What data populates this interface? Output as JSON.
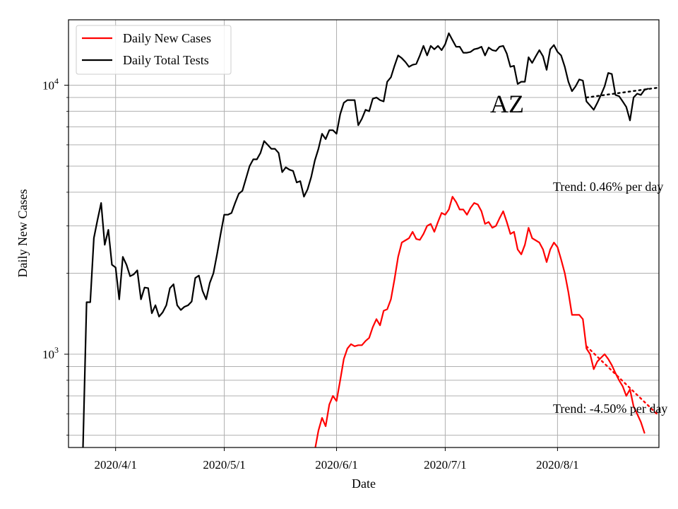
{
  "chart_data": {
    "type": "line",
    "xlabel": "Date",
    "ylabel": "Daily New Cases",
    "yscale": "log",
    "ylim": [
      450,
      17500
    ],
    "xlim": [
      "2020-03-19",
      "2020-08-29"
    ],
    "x_ticks": [
      {
        "date": "2020-04-01",
        "label": "2020/4/1"
      },
      {
        "date": "2020-05-01",
        "label": "2020/5/1"
      },
      {
        "date": "2020-06-01",
        "label": "2020/6/1"
      },
      {
        "date": "2020-07-01",
        "label": "2020/7/1"
      },
      {
        "date": "2020-08-01",
        "label": "2020/8/1"
      }
    ],
    "y_major_ticks": [
      {
        "value": 1000,
        "base": "10",
        "exp": "3"
      },
      {
        "value": 10000,
        "base": "10",
        "exp": "4"
      }
    ],
    "y_minor_ticks": [
      500,
      600,
      700,
      800,
      900,
      2000,
      3000,
      4000,
      5000,
      6000,
      7000,
      8000,
      9000
    ],
    "grid": true,
    "legend": {
      "placement": "top-left",
      "entries": [
        {
          "label": "Daily New Cases",
          "color": "#ff0000"
        },
        {
          "label": "Daily Total Tests",
          "color": "#000000"
        }
      ]
    },
    "series": [
      {
        "name": "Daily New Cases",
        "color": "#ff0000",
        "start_date": "2020-05-26",
        "values": [
          440,
          520,
          580,
          540,
          650,
          700,
          670,
          800,
          960,
          1050,
          1090,
          1070,
          1080,
          1080,
          1120,
          1150,
          1260,
          1350,
          1280,
          1450,
          1470,
          1600,
          1900,
          2300,
          2600,
          2650,
          2700,
          2850,
          2680,
          2660,
          2800,
          3000,
          3050,
          2850,
          3100,
          3350,
          3300,
          3450,
          3850,
          3680,
          3450,
          3450,
          3300,
          3500,
          3650,
          3600,
          3400,
          3050,
          3100,
          2950,
          3000,
          3200,
          3400,
          3100,
          2800,
          2850,
          2450,
          2350,
          2550,
          2950,
          2700,
          2650,
          2600,
          2450,
          2200,
          2450,
          2600,
          2500,
          2250,
          2000,
          1700,
          1400,
          1400,
          1400,
          1350,
          1050,
          1000,
          880,
          940,
          970,
          1000,
          960,
          910,
          850,
          800,
          760,
          700,
          740,
          640,
          600,
          560,
          510
        ]
      },
      {
        "name": "Daily Total Tests",
        "color": "#000000",
        "start_date": "2020-03-23",
        "values": [
          450,
          1560,
          1560,
          2700,
          3150,
          3650,
          2550,
          2900,
          2150,
          2100,
          1600,
          2300,
          2150,
          1950,
          1980,
          2050,
          1600,
          1770,
          1760,
          1420,
          1520,
          1380,
          1430,
          1520,
          1760,
          1820,
          1520,
          1460,
          1500,
          1520,
          1570,
          1920,
          1960,
          1720,
          1600,
          1840,
          2000,
          2350,
          2800,
          3300,
          3300,
          3350,
          3650,
          3950,
          4050,
          4500,
          5000,
          5300,
          5300,
          5600,
          6200,
          6000,
          5800,
          5800,
          5600,
          4750,
          4950,
          4850,
          4800,
          4350,
          4400,
          3850,
          4100,
          4550,
          5250,
          5800,
          6600,
          6300,
          6800,
          6800,
          6600,
          7800,
          8600,
          8800,
          8800,
          8800,
          7100,
          7500,
          8100,
          8000,
          8900,
          9000,
          8800,
          8700,
          10300,
          10700,
          11800,
          12900,
          12600,
          12200,
          11700,
          11900,
          12000,
          12900,
          14000,
          12900,
          14000,
          13600,
          14000,
          13500,
          14200,
          15600,
          14700,
          13900,
          13900,
          13200,
          13200,
          13300,
          13600,
          13700,
          13900,
          12900,
          13800,
          13500,
          13400,
          13900,
          14000,
          13100,
          11700,
          11800,
          10100,
          10300,
          10300,
          12700,
          12100,
          12800,
          13500,
          12800,
          11400,
          13600,
          14100,
          13300,
          12900,
          11700,
          10300,
          9500,
          9900,
          10500,
          10400,
          8700,
          8400,
          8100,
          8600,
          9200,
          9900,
          11100,
          11000,
          9200,
          9100,
          8700,
          8300,
          7400,
          9000,
          9300,
          9200,
          9600,
          9700
        ]
      }
    ],
    "trend_lines": [
      {
        "series": "Daily Total Tests",
        "color": "#000000",
        "points": [
          [
            "2020-08-09",
            9000
          ],
          [
            "2020-08-29",
            9800
          ]
        ]
      },
      {
        "series": "Daily New Cases",
        "color": "#ff0000",
        "points": [
          [
            "2020-08-09",
            1070
          ],
          [
            "2020-08-29",
            590
          ]
        ]
      }
    ],
    "annotations": {
      "state": "AZ",
      "tests_trend": "Trend: 0.46% per day",
      "cases_trend": "Trend: -4.50% per day"
    }
  }
}
